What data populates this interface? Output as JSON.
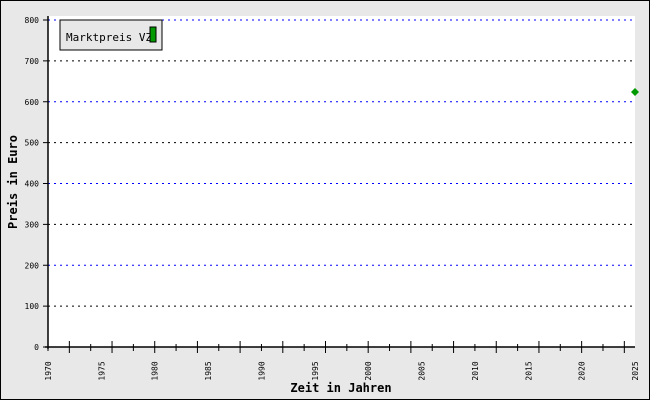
{
  "chart_data": {
    "type": "scatter",
    "title": "",
    "xlabel": "Zeit in Jahren",
    "ylabel": "Preis in Euro",
    "xlim": [
      1970,
      2025
    ],
    "ylim": [
      0,
      800
    ],
    "x_ticks": [
      1970,
      1975,
      1980,
      1985,
      1990,
      1995,
      2000,
      2005,
      2010,
      2015,
      2020,
      2025
    ],
    "y_ticks": [
      0,
      100,
      200,
      300,
      400,
      500,
      600,
      700,
      800
    ],
    "grid": true,
    "legend_placement": "top-left",
    "series": [
      {
        "name": "Marktpreis VZ",
        "color": "#009900",
        "marker": "diamond",
        "points": [
          {
            "x": 2025,
            "y": 624
          }
        ]
      }
    ]
  }
}
